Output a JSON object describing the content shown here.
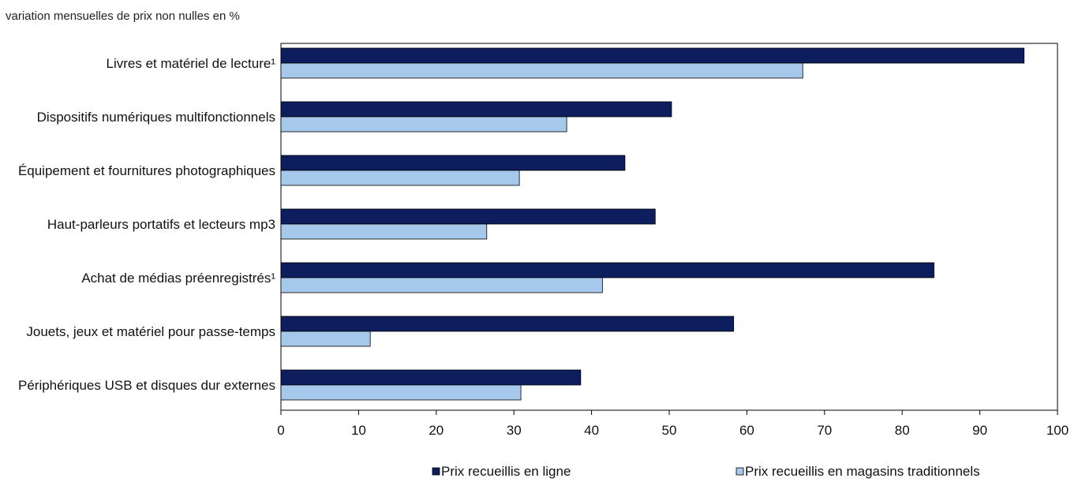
{
  "chart_data": {
    "type": "bar",
    "orientation": "horizontal",
    "unit_label": "variation mensuelles de prix non nulles en %",
    "categories": [
      "Livres et matériel de lecture¹",
      "Dispositifs numériques multifonctionnels",
      "Équipement et fournitures photographiques",
      "Haut-parleurs portatifs et lecteurs mp3",
      "Achat de médias préenregistrés¹",
      "Jouets, jeux et matériel pour passe-temps",
      "Périphériques USB et disques dur externes"
    ],
    "series": [
      {
        "name": "Prix recueillis en ligne",
        "color": "#0d1d5e",
        "values": [
          95.7,
          50.3,
          44.3,
          48.2,
          84.1,
          58.3,
          38.6
        ]
      },
      {
        "name": "Prix recueillis en magasins traditionnels",
        "color": "#a6c8ea",
        "values": [
          67.2,
          36.8,
          30.7,
          26.5,
          41.4,
          11.5,
          30.9
        ]
      }
    ],
    "xlim": [
      0,
      100
    ],
    "xticks": [
      0,
      10,
      20,
      30,
      40,
      50,
      60,
      70,
      80,
      90,
      100
    ],
    "grid": false,
    "legend_position": "bottom"
  }
}
